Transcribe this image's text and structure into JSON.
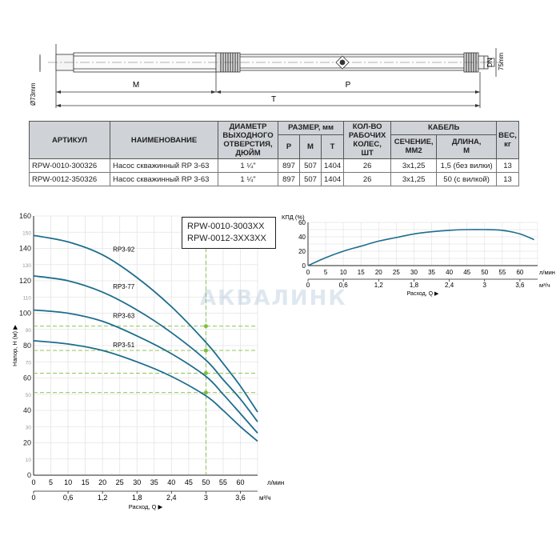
{
  "drawing": {
    "dim_labels": {
      "m": "M",
      "p": "P",
      "t": "T",
      "dn": "DN",
      "diameter": "Ø73mm",
      "length75": "75mm"
    }
  },
  "table": {
    "headers": {
      "article": "АРТИКУЛ",
      "name": "НАИМЕНОВАНИЕ",
      "outlet": [
        "ДИАМЕТР",
        "ВЫХОДНОГО",
        "ОТВЕРСТИЯ,",
        "ДЮЙМ"
      ],
      "size": "РАЗМЕР, мм",
      "size_p": "P",
      "size_m": "M",
      "size_t": "T",
      "wheels": [
        "КОЛ-ВО",
        "РАБОЧИХ",
        "КОЛЕС,",
        "ШТ"
      ],
      "cable": "КАБЕЛЬ",
      "cable_section": [
        "СЕЧЕНИЕ,",
        "ММ2"
      ],
      "cable_length": [
        "ДЛИНА,",
        "М"
      ],
      "weight": [
        "ВЕС,",
        "кг"
      ]
    },
    "rows": [
      {
        "article": "RPW-0010-300326",
        "name": "Насос скважинный RP 3-63",
        "outlet": "1 ¼\"",
        "p": "897",
        "m": "507",
        "t": "1404",
        "wheels": "26",
        "section": "3x1,25",
        "length": "1,5 (без вилки)",
        "weight": "13"
      },
      {
        "article": "RPW-0012-350326",
        "name": "Насос скважинный RP 3-63",
        "outlet": "1 ¼\"",
        "p": "897",
        "m": "507",
        "t": "1404",
        "wheels": "26",
        "section": "3x1,25",
        "length": "50 (с вилкой)",
        "weight": "13"
      }
    ]
  },
  "watermark": "АКВАЛИНК",
  "models_box": {
    "line1": "RPW-0010-3003XX",
    "line2": "RPW-0012-3XX3XX"
  },
  "colors": {
    "curve": "#1e6d8f",
    "green_dash": "#7fbf3f",
    "grid": "#e4e4e4",
    "table_header": "#cfd2d6"
  },
  "chart_data": [
    {
      "type": "line",
      "title": "",
      "ylabel": "Напор, H (м)",
      "xlabel": "Расход, Q",
      "x_unit": "л/мин",
      "x2_unit": "м³/ч",
      "xlim": [
        0,
        65
      ],
      "ylim": [
        0,
        160
      ],
      "x_ticks": [
        0,
        5,
        10,
        15,
        20,
        25,
        30,
        35,
        40,
        45,
        50,
        55,
        60
      ],
      "x2_ticks": [
        "0",
        "0,6",
        "1,2",
        "1,8",
        "2,4",
        "3",
        "3,6"
      ],
      "x2_tick_values": [
        0,
        10,
        20,
        30,
        40,
        50,
        60
      ],
      "y_ticks": [
        0,
        10,
        20,
        30,
        40,
        50,
        60,
        70,
        80,
        90,
        100,
        110,
        120,
        130,
        140,
        150,
        160
      ],
      "y_tick_labels_bold": [
        0,
        20,
        40,
        60,
        80,
        100,
        120,
        140,
        160
      ],
      "grid": true,
      "series": [
        {
          "name": "RP3-92",
          "x": [
            0,
            10,
            20,
            30,
            40,
            50,
            55,
            60,
            65
          ],
          "y": [
            148,
            144,
            136,
            122,
            104,
            82,
            69,
            55,
            39
          ]
        },
        {
          "name": "RP3-77",
          "x": [
            0,
            10,
            20,
            30,
            40,
            50,
            55,
            60,
            65
          ],
          "y": [
            123,
            120,
            113,
            102,
            88,
            71,
            59,
            47,
            33
          ]
        },
        {
          "name": "RP3-63",
          "x": [
            0,
            10,
            20,
            30,
            40,
            50,
            55,
            60,
            65
          ],
          "y": [
            102,
            100,
            95,
            86,
            75,
            61,
            50,
            38,
            26
          ]
        },
        {
          "name": "RP3-51",
          "x": [
            0,
            10,
            20,
            30,
            40,
            50,
            55,
            60,
            65
          ],
          "y": [
            83,
            81,
            77,
            70,
            61,
            49,
            40,
            30,
            21
          ]
        }
      ],
      "operating_points": {
        "x": 50,
        "y": [
          92,
          77,
          63,
          51
        ]
      }
    },
    {
      "type": "line",
      "title": "",
      "ylabel": "КПД (%)",
      "xlabel": "Расход, Q",
      "x_unit": "л/мин",
      "x2_unit": "м³/ч",
      "xlim": [
        0,
        65
      ],
      "ylim": [
        0,
        60
      ],
      "x_ticks": [
        0,
        5,
        10,
        15,
        20,
        25,
        30,
        35,
        40,
        45,
        50,
        55,
        60
      ],
      "x2_ticks": [
        "0",
        "0,6",
        "1,2",
        "1,8",
        "2,4",
        "3",
        "3,6"
      ],
      "x2_tick_values": [
        0,
        10,
        20,
        30,
        40,
        50,
        60
      ],
      "y_ticks": [
        0,
        10,
        20,
        30,
        40,
        50,
        60
      ],
      "y_tick_labels": [
        0,
        20,
        40,
        60
      ],
      "grid": true,
      "series": [
        {
          "x": [
            0,
            5,
            10,
            15,
            20,
            25,
            30,
            35,
            40,
            45,
            50,
            55,
            60,
            64
          ],
          "y": [
            0,
            11,
            20,
            27,
            34,
            39,
            44,
            47,
            49,
            50,
            50,
            49,
            44,
            36
          ]
        }
      ]
    }
  ]
}
